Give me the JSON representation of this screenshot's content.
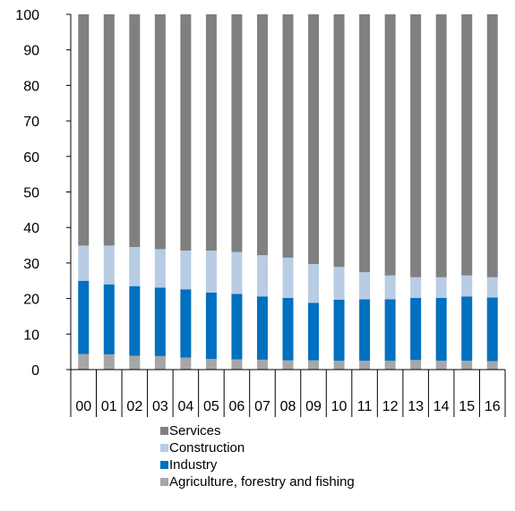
{
  "chart_data": {
    "type": "bar",
    "stacked": true,
    "title": "",
    "xlabel": "",
    "ylabel": "",
    "categories": [
      "00",
      "01",
      "02",
      "03",
      "04",
      "05",
      "06",
      "07",
      "08",
      "09",
      "10",
      "11",
      "12",
      "13",
      "14",
      "15",
      "16"
    ],
    "ylim": [
      0,
      100
    ],
    "yticks": [
      0,
      10,
      20,
      30,
      40,
      50,
      60,
      70,
      80,
      90,
      100
    ],
    "grid": false,
    "legend_position": "bottom",
    "series": [
      {
        "name": "Agriculture, forestry and fishing",
        "color": "#a6a6a6",
        "values": [
          4.4,
          4.3,
          3.9,
          3.8,
          3.4,
          3.0,
          2.9,
          2.8,
          2.6,
          2.6,
          2.5,
          2.5,
          2.5,
          2.7,
          2.5,
          2.5,
          2.4
        ]
      },
      {
        "name": "Industry",
        "color": "#0070c0",
        "values": [
          20.6,
          19.7,
          19.6,
          19.3,
          19.2,
          18.7,
          18.4,
          17.8,
          17.6,
          16.2,
          17.2,
          17.3,
          17.3,
          17.5,
          17.7,
          18.1,
          17.9
        ]
      },
      {
        "name": "Construction",
        "color": "#b8cce4",
        "values": [
          9.9,
          10.9,
          11.0,
          10.8,
          10.9,
          11.8,
          11.8,
          11.6,
          11.3,
          10.9,
          9.2,
          7.6,
          6.7,
          5.8,
          5.8,
          5.9,
          5.7
        ]
      },
      {
        "name": "Services",
        "color": "#808080",
        "values": [
          65.1,
          65.1,
          65.5,
          66.1,
          66.5,
          66.5,
          66.9,
          67.8,
          68.5,
          70.3,
          71.1,
          72.6,
          73.5,
          74.0,
          74.0,
          73.5,
          74.0
        ]
      }
    ],
    "legend_order": [
      "Services",
      "Construction",
      "Industry",
      "Agriculture, forestry and fishing"
    ]
  }
}
